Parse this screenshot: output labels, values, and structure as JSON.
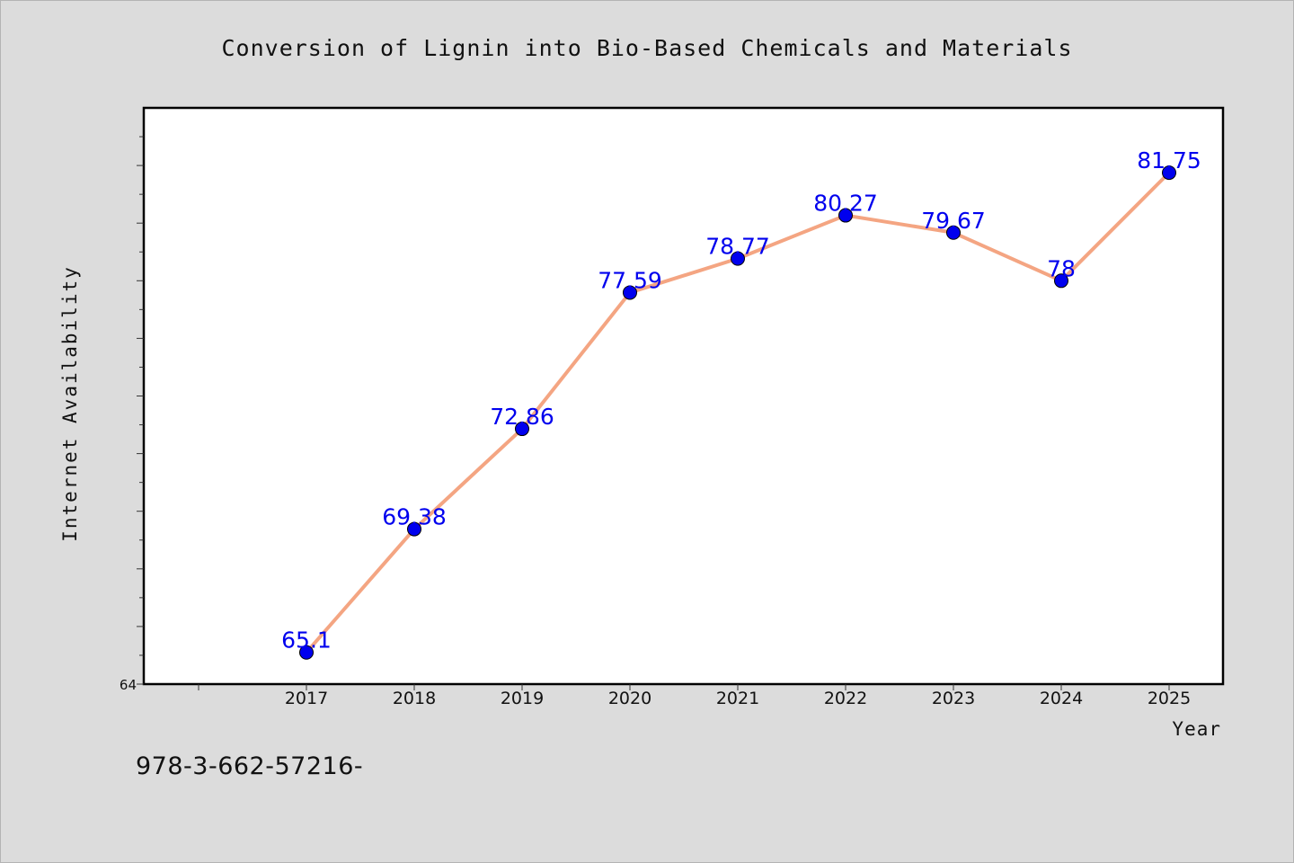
{
  "chart_data": {
    "type": "line",
    "title": "Conversion of Lignin into Bio-Based Chemicals and Materials",
    "xlabel": "Year",
    "ylabel": "Internet Availability",
    "categories": [
      "2017",
      "2018",
      "2019",
      "2020",
      "2021",
      "2022",
      "2023",
      "2024",
      "2025"
    ],
    "values": [
      65.1,
      69.38,
      72.86,
      77.59,
      78.77,
      80.27,
      79.67,
      78,
      81.75
    ],
    "data_labels": [
      "65.1",
      "69.38",
      "72.86",
      "77.59",
      "78.77",
      "80.27",
      "79.67",
      "78",
      "81.75"
    ],
    "ylim": [
      64,
      84
    ],
    "y_tick_labels": [
      "64"
    ],
    "grid": false,
    "line_color": "#f4a582",
    "marker_color": "#0000ee",
    "label_color": "#0000ee"
  },
  "footer": {
    "isbn": "978-3-662-57216-"
  }
}
